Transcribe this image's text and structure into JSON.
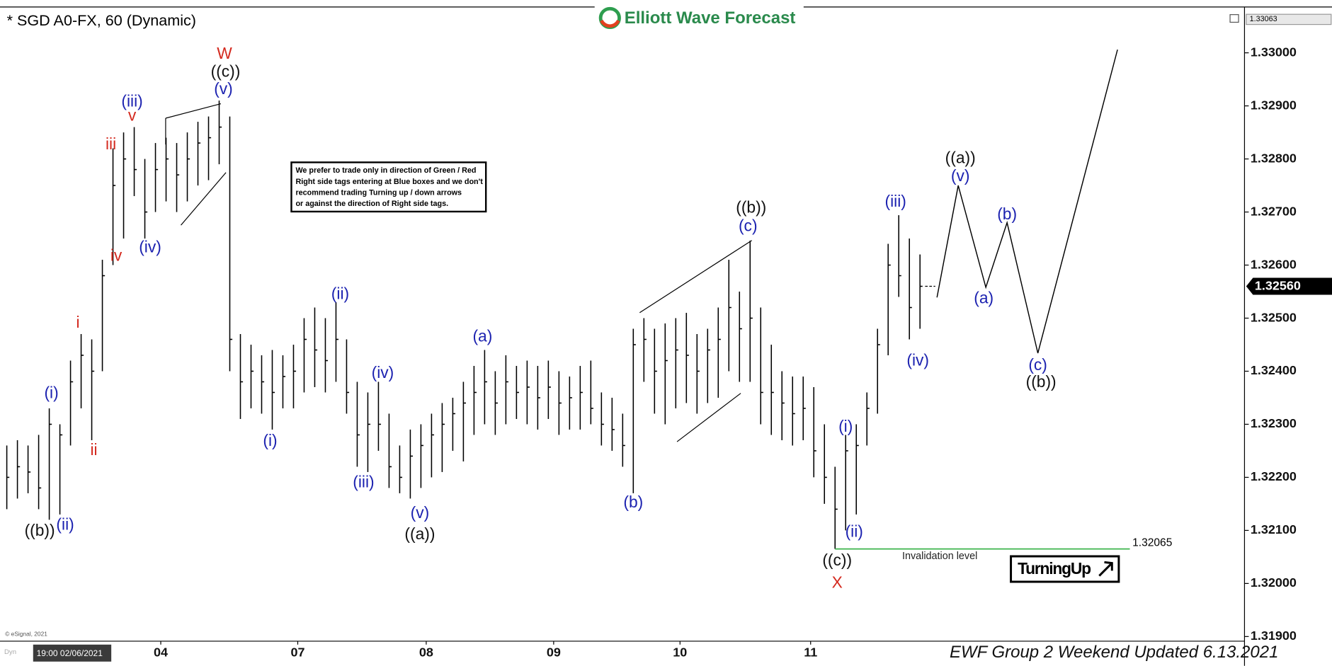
{
  "chart_data": {
    "type": "ohlc",
    "title": "* SGD A0-FX, 60 (Dynamic)",
    "logo": "Elliott Wave Forecast",
    "ylim": [
      1.318912,
      1.330864
    ],
    "yticks": [
      {
        "value": 1.33,
        "label": "1.33000"
      },
      {
        "value": 1.329,
        "label": "1.32900"
      },
      {
        "value": 1.328,
        "label": "1.32800"
      },
      {
        "value": 1.327,
        "label": "1.32700"
      },
      {
        "value": 1.326,
        "label": "1.32600"
      },
      {
        "value": 1.325,
        "label": "1.32500"
      },
      {
        "value": 1.324,
        "label": "1.32400"
      },
      {
        "value": 1.323,
        "label": "1.32300"
      },
      {
        "value": 1.322,
        "label": "1.32200"
      },
      {
        "value": 1.321,
        "label": "1.32100"
      },
      {
        "value": 1.32,
        "label": "1.32000"
      },
      {
        "value": 1.319,
        "label": "1.31900"
      }
    ],
    "xlim": [
      -0.64,
      116.56
    ],
    "xticks": [
      {
        "value": 14.5,
        "label": "04"
      },
      {
        "value": 27.4,
        "label": "07"
      },
      {
        "value": 39.5,
        "label": "08"
      },
      {
        "value": 51.5,
        "label": "09"
      },
      {
        "value": 63.4,
        "label": "10"
      },
      {
        "value": 75.7,
        "label": "11"
      }
    ],
    "color": "#000000",
    "ohlc": {
      "high": [
        1.3226,
        1.3227,
        1.3226,
        1.3228,
        1.3233,
        1.323,
        1.3242,
        1.3247,
        1.3246,
        1.3261,
        1.3282,
        1.3285,
        1.3286,
        1.328,
        1.3283,
        1.3284,
        1.3283,
        1.3285,
        1.3287,
        1.3288,
        1.3291,
        1.3288,
        1.3247,
        1.3245,
        1.3243,
        1.3244,
        1.3243,
        1.3245,
        1.325,
        1.3252,
        1.325,
        1.3253,
        1.3246,
        1.3238,
        1.3236,
        1.3238,
        1.3232,
        1.3226,
        1.3229,
        1.323,
        1.3232,
        1.3234,
        1.3235,
        1.3238,
        1.3241,
        1.3244,
        1.324,
        1.3243,
        1.3241,
        1.3242,
        1.3241,
        1.3242,
        1.324,
        1.3239,
        1.3241,
        1.3242,
        1.3236,
        1.3235,
        1.3232,
        1.3248,
        1.325,
        1.3248,
        1.3249,
        1.325,
        1.3251,
        1.3247,
        1.3248,
        1.3252,
        1.3261,
        1.3255,
        1.32646,
        1.3252,
        1.3245,
        1.324,
        1.3239,
        1.3239,
        1.3237,
        1.323,
        1.3222,
        1.3228,
        1.323,
        1.3236,
        1.3248,
        1.3264,
        1.32694,
        1.3265,
        1.3262
      ],
      "low": [
        1.3214,
        1.3216,
        1.3217,
        1.3214,
        1.3212,
        1.3213,
        1.3226,
        1.3233,
        1.3227,
        1.324,
        1.326,
        1.3265,
        1.3273,
        1.3265,
        1.327,
        1.3272,
        1.327,
        1.3272,
        1.3275,
        1.3276,
        1.3279,
        1.324,
        1.3231,
        1.3233,
        1.3232,
        1.3229,
        1.3233,
        1.3233,
        1.3236,
        1.3237,
        1.3236,
        1.3238,
        1.3232,
        1.3222,
        1.3221,
        1.3225,
        1.3218,
        1.3217,
        1.3216,
        1.3218,
        1.322,
        1.3221,
        1.3225,
        1.3223,
        1.3228,
        1.323,
        1.3228,
        1.323,
        1.3231,
        1.323,
        1.3229,
        1.3231,
        1.3228,
        1.3229,
        1.3229,
        1.323,
        1.3226,
        1.3225,
        1.3222,
        1.3217,
        1.3238,
        1.3232,
        1.323,
        1.3233,
        1.3234,
        1.3232,
        1.3234,
        1.3235,
        1.324,
        1.3238,
        1.3238,
        1.323,
        1.3228,
        1.3227,
        1.3226,
        1.3227,
        1.322,
        1.3215,
        1.32065,
        1.321,
        1.3213,
        1.3226,
        1.3232,
        1.3243,
        1.3254,
        1.3246,
        1.3248
      ],
      "close": [
        1.322,
        1.3222,
        1.3221,
        1.3218,
        1.323,
        1.3228,
        1.3238,
        1.3243,
        1.324,
        1.3258,
        1.3275,
        1.328,
        1.3278,
        1.327,
        1.3278,
        1.328,
        1.3277,
        1.328,
        1.3283,
        1.3284,
        1.3286,
        1.3246,
        1.3238,
        1.324,
        1.3238,
        1.3236,
        1.3239,
        1.324,
        1.3246,
        1.3244,
        1.3242,
        1.3246,
        1.3236,
        1.3228,
        1.323,
        1.323,
        1.3222,
        1.322,
        1.3224,
        1.3226,
        1.3228,
        1.323,
        1.3232,
        1.3234,
        1.3236,
        1.3238,
        1.3234,
        1.3238,
        1.3236,
        1.3237,
        1.3235,
        1.3237,
        1.3234,
        1.3235,
        1.3236,
        1.3233,
        1.323,
        1.3229,
        1.3226,
        1.3245,
        1.3246,
        1.324,
        1.3242,
        1.3244,
        1.3243,
        1.324,
        1.3244,
        1.3246,
        1.3252,
        1.3248,
        1.325,
        1.3236,
        1.3236,
        1.3234,
        1.3232,
        1.3233,
        1.3225,
        1.322,
        1.3214,
        1.3225,
        1.3226,
        1.3233,
        1.3245,
        1.326,
        1.3258,
        1.3252,
        1.3256
      ]
    },
    "projection": {
      "x": [
        87.6,
        89.6,
        92.2,
        94.2,
        97.1,
        104.6
      ],
      "y": [
        1.32539,
        1.3275,
        1.32558,
        1.3268,
        1.32434,
        1.33006
      ]
    },
    "last_price": {
      "value": 1.3256,
      "label": "1.32560"
    },
    "axis_top": 1.33063,
    "invalidation": {
      "value": 1.32065,
      "label": "Invalidation level",
      "color": "#3cb44b"
    },
    "wave_labels": [
      {
        "text": "W",
        "color": "#d42a1f",
        "x": 20.5,
        "y": 1.32997
      },
      {
        "text": "((c))",
        "color": "#111111",
        "x": 20.6,
        "y": 1.32963
      },
      {
        "text": "(v)",
        "color": "#1c22b0",
        "x": 20.4,
        "y": 1.3293
      },
      {
        "text": "(iii)",
        "color": "#1c22b0",
        "x": 11.8,
        "y": 1.32907
      },
      {
        "text": "v",
        "color": "#d42a1f",
        "x": 11.8,
        "y": 1.3288
      },
      {
        "text": "iii",
        "color": "#d42a1f",
        "x": 9.8,
        "y": 1.32826
      },
      {
        "text": "iv",
        "color": "#d42a1f",
        "x": 10.3,
        "y": 1.32616
      },
      {
        "text": "(iv)",
        "color": "#1c22b0",
        "x": 13.5,
        "y": 1.32632
      },
      {
        "text": "i",
        "color": "#d42a1f",
        "x": 6.7,
        "y": 1.3249
      },
      {
        "text": "ii",
        "color": "#d42a1f",
        "x": 8.2,
        "y": 1.3225
      },
      {
        "text": "(i)",
        "color": "#1c22b0",
        "x": 4.2,
        "y": 1.32357
      },
      {
        "text": "(ii)",
        "color": "#1c22b0",
        "x": 5.5,
        "y": 1.32109
      },
      {
        "text": "((b))",
        "color": "#111111",
        "x": 3.1,
        "y": 1.32098
      },
      {
        "text": "(i)",
        "color": "#1c22b0",
        "x": 24.8,
        "y": 1.32267
      },
      {
        "text": "(ii)",
        "color": "#1c22b0",
        "x": 31.4,
        "y": 1.32544
      },
      {
        "text": "(iii)",
        "color": "#1c22b0",
        "x": 33.6,
        "y": 1.32189
      },
      {
        "text": "(iv)",
        "color": "#1c22b0",
        "x": 35.4,
        "y": 1.32395
      },
      {
        "text": "(v)",
        "color": "#1c22b0",
        "x": 38.9,
        "y": 1.32131
      },
      {
        "text": "((a))",
        "color": "#111111",
        "x": 38.9,
        "y": 1.32091
      },
      {
        "text": "(a)",
        "color": "#1c22b0",
        "x": 44.8,
        "y": 1.32464
      },
      {
        "text": "(b)",
        "color": "#1c22b0",
        "x": 59,
        "y": 1.32151
      },
      {
        "text": "(c)",
        "color": "#1c22b0",
        "x": 69.8,
        "y": 1.32672
      },
      {
        "text": "((b))",
        "color": "#111111",
        "x": 70.1,
        "y": 1.32707
      },
      {
        "text": "((c))",
        "color": "#111111",
        "x": 78.2,
        "y": 1.32042
      },
      {
        "text": "X",
        "color": "#d42a1f",
        "x": 78.2,
        "y": 1.32
      },
      {
        "text": "(i)",
        "color": "#1c22b0",
        "x": 79,
        "y": 1.32294
      },
      {
        "text": "(ii)",
        "color": "#1c22b0",
        "x": 79.8,
        "y": 1.32096
      },
      {
        "text": "(iii)",
        "color": "#1c22b0",
        "x": 83.7,
        "y": 1.32718
      },
      {
        "text": "(iv)",
        "color": "#1c22b0",
        "x": 85.8,
        "y": 1.32419
      },
      {
        "text": "((a))",
        "color": "#111111",
        "x": 89.8,
        "y": 1.328
      },
      {
        "text": "(v)",
        "color": "#1c22b0",
        "x": 89.8,
        "y": 1.32766
      },
      {
        "text": "(a)",
        "color": "#1c22b0",
        "x": 92,
        "y": 1.32536
      },
      {
        "text": "(b)",
        "color": "#1c22b0",
        "x": 94.2,
        "y": 1.32694
      },
      {
        "text": "(c)",
        "color": "#1c22b0",
        "x": 97.1,
        "y": 1.3241
      },
      {
        "text": "((b))",
        "color": "#111111",
        "x": 97.4,
        "y": 1.32378
      }
    ],
    "note": [
      "We prefer to trade only in direction of Green / Red",
      "Right side tags entering at Blue boxes and we don't",
      "recommend trading Turning up / down arrows",
      "or against the direction of Right side tags."
    ],
    "badge": "TurningUp",
    "copyright": "© eSignal, 2021",
    "cursor_time": "19:00 02/06/2021",
    "cursor_prefix": "Dyn",
    "footer": "EWF Group 2 Weekend Updated 6.13.2021"
  }
}
